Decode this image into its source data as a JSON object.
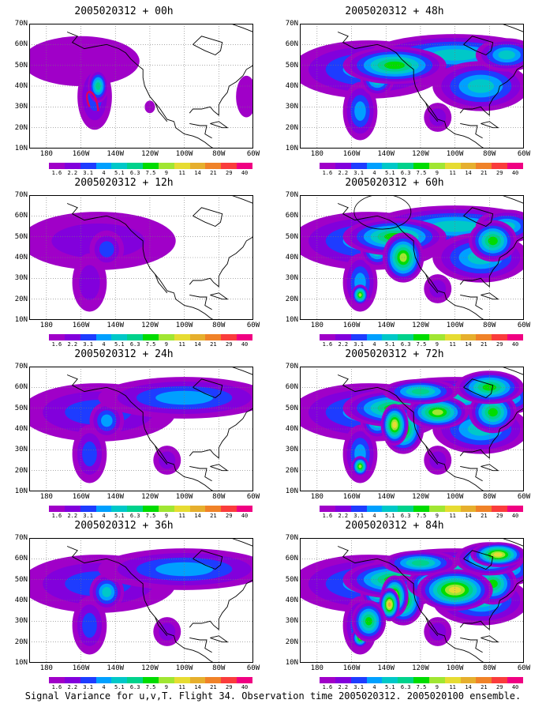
{
  "panels": [
    {
      "title": "2005020312 + 00h",
      "lead": 0
    },
    {
      "title": "2005020312 + 48h",
      "lead": 48
    },
    {
      "title": "2005020312 + 12h",
      "lead": 12
    },
    {
      "title": "2005020312 + 60h",
      "lead": 60
    },
    {
      "title": "2005020312 + 24h",
      "lead": 24
    },
    {
      "title": "2005020312 + 72h",
      "lead": 72
    },
    {
      "title": "2005020312 + 36h",
      "lead": 36
    },
    {
      "title": "2005020312 + 84h",
      "lead": 84
    }
  ],
  "lat_labels": [
    "70N",
    "60N",
    "50N",
    "40N",
    "30N",
    "20N",
    "10N"
  ],
  "lon_labels": [
    "180",
    "160W",
    "140W",
    "120W",
    "100W",
    "80W",
    "60W"
  ],
  "colorbar": {
    "labels": [
      "1.6",
      "2.2",
      "3.1",
      "4",
      "5.1",
      "6.3",
      "7.5",
      "9",
      "11",
      "14",
      "21",
      "29",
      "40"
    ],
    "colors": [
      "#a000c8",
      "#8200dc",
      "#1e3cff",
      "#00a0ff",
      "#00c8c8",
      "#00d28c",
      "#00dc00",
      "#a0e632",
      "#e6dc32",
      "#e6af2d",
      "#f08228",
      "#fa3c3c",
      "#f00082"
    ]
  },
  "footer": "Signal Variance for u,v,T. Flight 34. Observation time 2005020312. 2005020100 ensemble."
}
